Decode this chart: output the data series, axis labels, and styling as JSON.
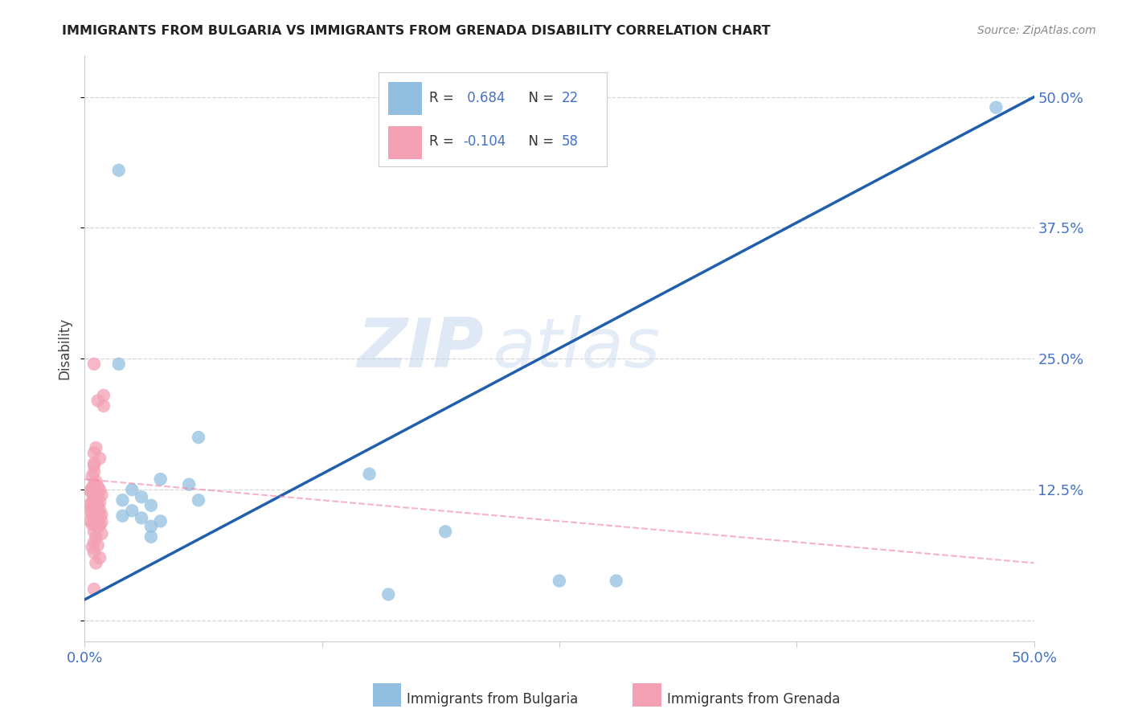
{
  "title": "IMMIGRANTS FROM BULGARIA VS IMMIGRANTS FROM GRENADA DISABILITY CORRELATION CHART",
  "source": "Source: ZipAtlas.com",
  "tick_color": "#4472C4",
  "ylabel": "Disability",
  "xlim": [
    0.0,
    0.5
  ],
  "ylim": [
    -0.02,
    0.54
  ],
  "xticks": [
    0.0,
    0.125,
    0.25,
    0.375,
    0.5
  ],
  "yticks": [
    0.0,
    0.125,
    0.25,
    0.375,
    0.5
  ],
  "xtick_labels": [
    "0.0%",
    "",
    "",
    "",
    "50.0%"
  ],
  "ytick_labels": [
    "",
    "12.5%",
    "25.0%",
    "37.5%",
    "50.0%"
  ],
  "bulgaria_color": "#92BFDF",
  "grenada_color": "#F4A0B5",
  "bulgaria_line_color": "#1F5FAD",
  "grenada_line_color": "#F080A0",
  "R_bulgaria": 0.684,
  "N_bulgaria": 22,
  "R_grenada": -0.104,
  "N_grenada": 58,
  "watermark_zip": "ZIP",
  "watermark_atlas": "atlas",
  "bulgaria_line_x": [
    0.0,
    0.5
  ],
  "bulgaria_line_y": [
    0.02,
    0.5
  ],
  "grenada_line_x": [
    0.0,
    0.5
  ],
  "grenada_line_y": [
    0.135,
    0.055
  ],
  "bulgaria_scatter": [
    [
      0.018,
      0.43
    ],
    [
      0.48,
      0.49
    ],
    [
      0.018,
      0.245
    ],
    [
      0.06,
      0.175
    ],
    [
      0.15,
      0.14
    ],
    [
      0.04,
      0.135
    ],
    [
      0.055,
      0.13
    ],
    [
      0.025,
      0.125
    ],
    [
      0.03,
      0.118
    ],
    [
      0.02,
      0.115
    ],
    [
      0.06,
      0.115
    ],
    [
      0.035,
      0.11
    ],
    [
      0.025,
      0.105
    ],
    [
      0.02,
      0.1
    ],
    [
      0.03,
      0.098
    ],
    [
      0.04,
      0.095
    ],
    [
      0.035,
      0.09
    ],
    [
      0.19,
      0.085
    ],
    [
      0.035,
      0.08
    ],
    [
      0.25,
      0.038
    ],
    [
      0.28,
      0.038
    ],
    [
      0.16,
      0.025
    ]
  ],
  "grenada_scatter": [
    [
      0.005,
      0.245
    ],
    [
      0.01,
      0.215
    ],
    [
      0.01,
      0.205
    ],
    [
      0.007,
      0.21
    ],
    [
      0.006,
      0.165
    ],
    [
      0.005,
      0.16
    ],
    [
      0.008,
      0.155
    ],
    [
      0.005,
      0.15
    ],
    [
      0.005,
      0.148
    ],
    [
      0.005,
      0.142
    ],
    [
      0.004,
      0.138
    ],
    [
      0.006,
      0.133
    ],
    [
      0.005,
      0.13
    ],
    [
      0.007,
      0.128
    ],
    [
      0.004,
      0.127
    ],
    [
      0.008,
      0.125
    ],
    [
      0.003,
      0.124
    ],
    [
      0.006,
      0.123
    ],
    [
      0.004,
      0.122
    ],
    [
      0.009,
      0.12
    ],
    [
      0.007,
      0.118
    ],
    [
      0.005,
      0.116
    ],
    [
      0.006,
      0.115
    ],
    [
      0.004,
      0.114
    ],
    [
      0.008,
      0.113
    ],
    [
      0.005,
      0.112
    ],
    [
      0.003,
      0.111
    ],
    [
      0.007,
      0.11
    ],
    [
      0.006,
      0.109
    ],
    [
      0.005,
      0.108
    ],
    [
      0.004,
      0.107
    ],
    [
      0.008,
      0.106
    ],
    [
      0.003,
      0.105
    ],
    [
      0.007,
      0.104
    ],
    [
      0.005,
      0.103
    ],
    [
      0.006,
      0.102
    ],
    [
      0.009,
      0.101
    ],
    [
      0.004,
      0.1
    ],
    [
      0.008,
      0.099
    ],
    [
      0.005,
      0.098
    ],
    [
      0.007,
      0.097
    ],
    [
      0.006,
      0.096
    ],
    [
      0.003,
      0.095
    ],
    [
      0.009,
      0.094
    ],
    [
      0.005,
      0.093
    ],
    [
      0.004,
      0.092
    ],
    [
      0.008,
      0.091
    ],
    [
      0.007,
      0.09
    ],
    [
      0.005,
      0.085
    ],
    [
      0.009,
      0.083
    ],
    [
      0.006,
      0.08
    ],
    [
      0.005,
      0.075
    ],
    [
      0.007,
      0.072
    ],
    [
      0.004,
      0.07
    ],
    [
      0.005,
      0.065
    ],
    [
      0.008,
      0.06
    ],
    [
      0.006,
      0.055
    ],
    [
      0.005,
      0.03
    ]
  ]
}
